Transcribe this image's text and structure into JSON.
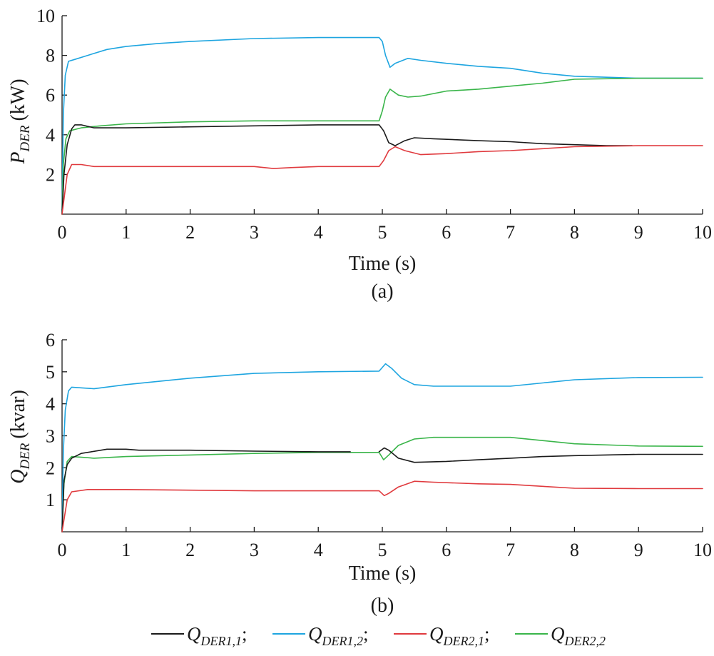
{
  "colors": {
    "black": "#1a1a1a",
    "blue": "#1ea5e0",
    "red": "#e03a3e",
    "green": "#3ab54a"
  },
  "legend": {
    "placement": "bottom",
    "entries": [
      {
        "series": "Q_DER1,1",
        "base": "Q",
        "sub": "DER1,1",
        "sep": ";",
        "color": "#1a1a1a"
      },
      {
        "series": "Q_DER1,2",
        "base": "Q",
        "sub": "DER1,2",
        "sep": ";",
        "color": "#1ea5e0"
      },
      {
        "series": "Q_DER2,1",
        "base": "Q",
        "sub": "DER2,1",
        "sep": ";",
        "color": "#e03a3e"
      },
      {
        "series": "Q_DER2,2",
        "base": "Q",
        "sub": "DER2,2",
        "sep": "",
        "color": "#3ab54a"
      }
    ]
  },
  "chart_data": [
    {
      "type": "line",
      "caption": "(a)",
      "xlabel": "Time (s)",
      "ylabel_base": "P",
      "ylabel_sub": "DER",
      "ylabel_unit": "(kW)",
      "xlim": [
        0,
        10
      ],
      "ylim": [
        0,
        10
      ],
      "xticks": [
        "0",
        "1",
        "2",
        "3",
        "4",
        "5",
        "6",
        "7",
        "8",
        "9",
        "10"
      ],
      "yticks": [
        "2",
        "4",
        "6",
        "8",
        "10"
      ],
      "grid": false,
      "series": [
        {
          "color": "#1ea5e0",
          "points": [
            [
              0,
              0
            ],
            [
              0.02,
              5.0
            ],
            [
              0.05,
              7.0
            ],
            [
              0.1,
              7.7
            ],
            [
              0.2,
              7.8
            ],
            [
              0.4,
              8.0
            ],
            [
              0.7,
              8.3
            ],
            [
              1.0,
              8.45
            ],
            [
              1.5,
              8.6
            ],
            [
              2.0,
              8.7
            ],
            [
              3.0,
              8.85
            ],
            [
              4.0,
              8.9
            ],
            [
              4.95,
              8.9
            ],
            [
              5.0,
              8.7
            ],
            [
              5.05,
              8.0
            ],
            [
              5.12,
              7.4
            ],
            [
              5.2,
              7.6
            ],
            [
              5.4,
              7.85
            ],
            [
              5.6,
              7.75
            ],
            [
              6.0,
              7.6
            ],
            [
              6.5,
              7.45
            ],
            [
              7.0,
              7.35
            ],
            [
              7.5,
              7.1
            ],
            [
              8.0,
              6.95
            ],
            [
              8.5,
              6.9
            ],
            [
              9.0,
              6.85
            ],
            [
              10,
              6.85
            ]
          ]
        },
        {
          "color": "#3ab54a",
          "points": [
            [
              0,
              0
            ],
            [
              0.02,
              2.5
            ],
            [
              0.06,
              3.8
            ],
            [
              0.12,
              4.2
            ],
            [
              0.3,
              4.35
            ],
            [
              0.6,
              4.45
            ],
            [
              1.0,
              4.55
            ],
            [
              2.0,
              4.65
            ],
            [
              3.0,
              4.7
            ],
            [
              4.0,
              4.7
            ],
            [
              4.95,
              4.7
            ],
            [
              5.0,
              5.2
            ],
            [
              5.05,
              5.9
            ],
            [
              5.12,
              6.3
            ],
            [
              5.25,
              6.0
            ],
            [
              5.4,
              5.9
            ],
            [
              5.6,
              5.95
            ],
            [
              6.0,
              6.2
            ],
            [
              6.5,
              6.3
            ],
            [
              7.0,
              6.45
            ],
            [
              7.5,
              6.6
            ],
            [
              8.0,
              6.8
            ],
            [
              9.0,
              6.85
            ],
            [
              10,
              6.85
            ]
          ]
        },
        {
          "color": "#1a1a1a",
          "points": [
            [
              0,
              0
            ],
            [
              0.03,
              2.0
            ],
            [
              0.08,
              3.5
            ],
            [
              0.15,
              4.3
            ],
            [
              0.2,
              4.5
            ],
            [
              0.3,
              4.5
            ],
            [
              0.5,
              4.35
            ],
            [
              1.0,
              4.35
            ],
            [
              2.0,
              4.4
            ],
            [
              3.0,
              4.45
            ],
            [
              4.0,
              4.5
            ],
            [
              4.95,
              4.5
            ],
            [
              5.02,
              4.2
            ],
            [
              5.1,
              3.6
            ],
            [
              5.2,
              3.45
            ],
            [
              5.35,
              3.7
            ],
            [
              5.5,
              3.85
            ],
            [
              5.8,
              3.8
            ],
            [
              6.5,
              3.7
            ],
            [
              7.0,
              3.65
            ],
            [
              7.5,
              3.55
            ],
            [
              8.0,
              3.5
            ],
            [
              8.5,
              3.45
            ],
            [
              8.9,
              3.45
            ]
          ]
        },
        {
          "color": "#e03a3e",
          "points": [
            [
              0,
              0
            ],
            [
              0.04,
              1.0
            ],
            [
              0.08,
              2.0
            ],
            [
              0.15,
              2.5
            ],
            [
              0.3,
              2.5
            ],
            [
              0.5,
              2.4
            ],
            [
              1.0,
              2.4
            ],
            [
              2.0,
              2.4
            ],
            [
              3.0,
              2.4
            ],
            [
              3.3,
              2.3
            ],
            [
              3.6,
              2.35
            ],
            [
              4.0,
              2.4
            ],
            [
              4.95,
              2.4
            ],
            [
              5.02,
              2.7
            ],
            [
              5.1,
              3.2
            ],
            [
              5.2,
              3.4
            ],
            [
              5.35,
              3.2
            ],
            [
              5.6,
              3.0
            ],
            [
              6.0,
              3.05
            ],
            [
              6.5,
              3.15
            ],
            [
              7.0,
              3.2
            ],
            [
              7.5,
              3.3
            ],
            [
              8.0,
              3.4
            ],
            [
              9.0,
              3.45
            ],
            [
              10,
              3.45
            ]
          ]
        }
      ]
    },
    {
      "type": "line",
      "caption": "(b)",
      "xlabel": "Time (s)",
      "ylabel_base": "Q",
      "ylabel_sub": "DER",
      "ylabel_unit": "(kvar)",
      "xlim": [
        0,
        10
      ],
      "ylim": [
        0,
        6
      ],
      "xticks": [
        "0",
        "1",
        "2",
        "3",
        "4",
        "5",
        "6",
        "7",
        "8",
        "9",
        "10"
      ],
      "yticks": [
        "1",
        "2",
        "3",
        "4",
        "5",
        "6"
      ],
      "grid": false,
      "series": [
        {
          "color": "#1ea5e0",
          "points": [
            [
              0,
              0
            ],
            [
              0.02,
              2.5
            ],
            [
              0.05,
              3.8
            ],
            [
              0.1,
              4.4
            ],
            [
              0.15,
              4.52
            ],
            [
              0.5,
              4.47
            ],
            [
              1.0,
              4.6
            ],
            [
              2.0,
              4.8
            ],
            [
              3.0,
              4.95
            ],
            [
              4.0,
              5.0
            ],
            [
              4.95,
              5.02
            ],
            [
              5.05,
              5.25
            ],
            [
              5.15,
              5.1
            ],
            [
              5.3,
              4.8
            ],
            [
              5.5,
              4.6
            ],
            [
              5.8,
              4.55
            ],
            [
              6.5,
              4.55
            ],
            [
              7.0,
              4.55
            ],
            [
              7.5,
              4.65
            ],
            [
              8.0,
              4.75
            ],
            [
              9.0,
              4.82
            ],
            [
              10,
              4.83
            ]
          ]
        },
        {
          "color": "#3ab54a",
          "points": [
            [
              0,
              0
            ],
            [
              0.03,
              1.5
            ],
            [
              0.08,
              2.2
            ],
            [
              0.15,
              2.35
            ],
            [
              0.5,
              2.3
            ],
            [
              1.0,
              2.35
            ],
            [
              2.0,
              2.4
            ],
            [
              3.0,
              2.45
            ],
            [
              4.0,
              2.48
            ],
            [
              4.95,
              2.48
            ],
            [
              5.02,
              2.25
            ],
            [
              5.1,
              2.4
            ],
            [
              5.25,
              2.7
            ],
            [
              5.5,
              2.9
            ],
            [
              5.8,
              2.95
            ],
            [
              7.0,
              2.95
            ],
            [
              7.5,
              2.85
            ],
            [
              8.0,
              2.75
            ],
            [
              9.0,
              2.68
            ],
            [
              10,
              2.67
            ]
          ]
        },
        {
          "color": "#1a1a1a",
          "points": [
            [
              0,
              0
            ],
            [
              0.03,
              1.6
            ],
            [
              0.08,
              2.1
            ],
            [
              0.15,
              2.3
            ],
            [
              0.3,
              2.45
            ],
            [
              0.7,
              2.58
            ],
            [
              1.0,
              2.58
            ],
            [
              1.2,
              2.55
            ],
            [
              2.0,
              2.55
            ],
            [
              3.0,
              2.52
            ],
            [
              4.0,
              2.5
            ],
            [
              4.5,
              2.5
            ]
          ]
        },
        {
          "color": "#1a1a1a",
          "points": [
            [
              4.95,
              2.5
            ],
            [
              5.03,
              2.62
            ],
            [
              5.1,
              2.55
            ],
            [
              5.25,
              2.3
            ],
            [
              5.5,
              2.17
            ],
            [
              6.0,
              2.2
            ],
            [
              6.5,
              2.25
            ],
            [
              7.0,
              2.3
            ],
            [
              7.5,
              2.35
            ],
            [
              8.0,
              2.38
            ],
            [
              9.0,
              2.42
            ],
            [
              10,
              2.42
            ]
          ]
        },
        {
          "color": "#e03a3e",
          "points": [
            [
              0,
              0
            ],
            [
              0.04,
              0.5
            ],
            [
              0.08,
              1.0
            ],
            [
              0.15,
              1.25
            ],
            [
              0.4,
              1.32
            ],
            [
              1.0,
              1.32
            ],
            [
              2.0,
              1.3
            ],
            [
              3.0,
              1.28
            ],
            [
              4.0,
              1.28
            ],
            [
              4.95,
              1.28
            ],
            [
              5.03,
              1.13
            ],
            [
              5.1,
              1.2
            ],
            [
              5.25,
              1.4
            ],
            [
              5.5,
              1.58
            ],
            [
              5.8,
              1.55
            ],
            [
              6.5,
              1.5
            ],
            [
              7.0,
              1.48
            ],
            [
              7.5,
              1.42
            ],
            [
              8.0,
              1.36
            ],
            [
              9.0,
              1.35
            ],
            [
              10,
              1.35
            ]
          ]
        }
      ]
    }
  ]
}
